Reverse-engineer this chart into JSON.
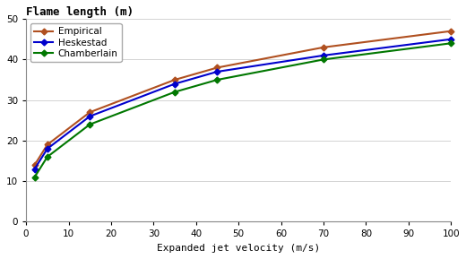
{
  "title": "Flame length (m)",
  "xlabel": "Expanded jet velocity (m/s)",
  "xlim": [
    0,
    100
  ],
  "ylim": [
    0,
    50
  ],
  "xticks": [
    0,
    10,
    20,
    30,
    40,
    50,
    60,
    70,
    80,
    90,
    100
  ],
  "yticks": [
    0,
    10,
    20,
    30,
    40,
    50
  ],
  "series": [
    {
      "label": "Empirical",
      "color": "#b05020",
      "x": [
        2,
        5,
        15,
        35,
        45,
        70,
        100
      ],
      "y": [
        14,
        19,
        27,
        35,
        38,
        43,
        47
      ]
    },
    {
      "label": "Heskestad",
      "color": "#0000cc",
      "x": [
        2,
        5,
        15,
        35,
        45,
        70,
        100
      ],
      "y": [
        13,
        18,
        26,
        34,
        37,
        41,
        45
      ]
    },
    {
      "label": "Chamberlain",
      "color": "#007700",
      "x": [
        2,
        5,
        15,
        35,
        45,
        70,
        100
      ],
      "y": [
        11,
        16,
        24,
        32,
        35,
        40,
        44
      ]
    }
  ],
  "legend_loc": "upper left",
  "title_fontsize": 9,
  "xlabel_fontsize": 8,
  "tick_fontsize": 7.5,
  "legend_fontsize": 7.5,
  "marker": "D",
  "markersize": 3.5,
  "linewidth": 1.5,
  "grid_color": "#cccccc",
  "background_color": "#ffffff"
}
